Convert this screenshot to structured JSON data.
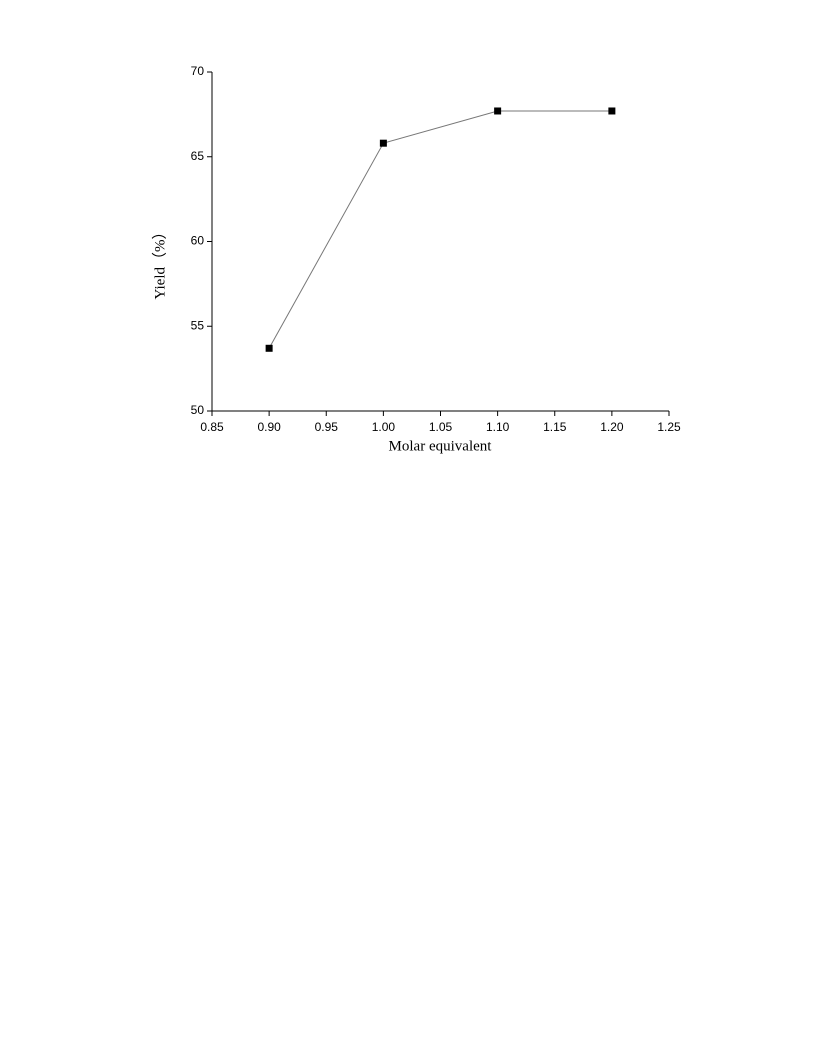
{
  "chart_data": {
    "type": "line",
    "x_label": "Molar equivalent",
    "y_label": "Yield（%）",
    "x": [
      0.9,
      1.0,
      1.1,
      1.2
    ],
    "values": [
      53.7,
      65.8,
      67.7,
      67.7
    ],
    "color": "#000000",
    "line_color": "#777777",
    "marker": "square",
    "xlim": [
      0.85,
      1.25
    ],
    "xticks": [
      0.85,
      {
        "value": 0.9,
        "label": "0.90"
      },
      0.95,
      {
        "value": 1.0,
        "label": "1.00"
      },
      1.05,
      {
        "value": 1.1,
        "label": "1.10"
      },
      1.15,
      {
        "value": 1.2,
        "label": "1.20"
      },
      1.25
    ],
    "ylim": [
      50,
      70
    ],
    "yticks": [
      50,
      55,
      60,
      65,
      70
    ],
    "grid": false
  }
}
